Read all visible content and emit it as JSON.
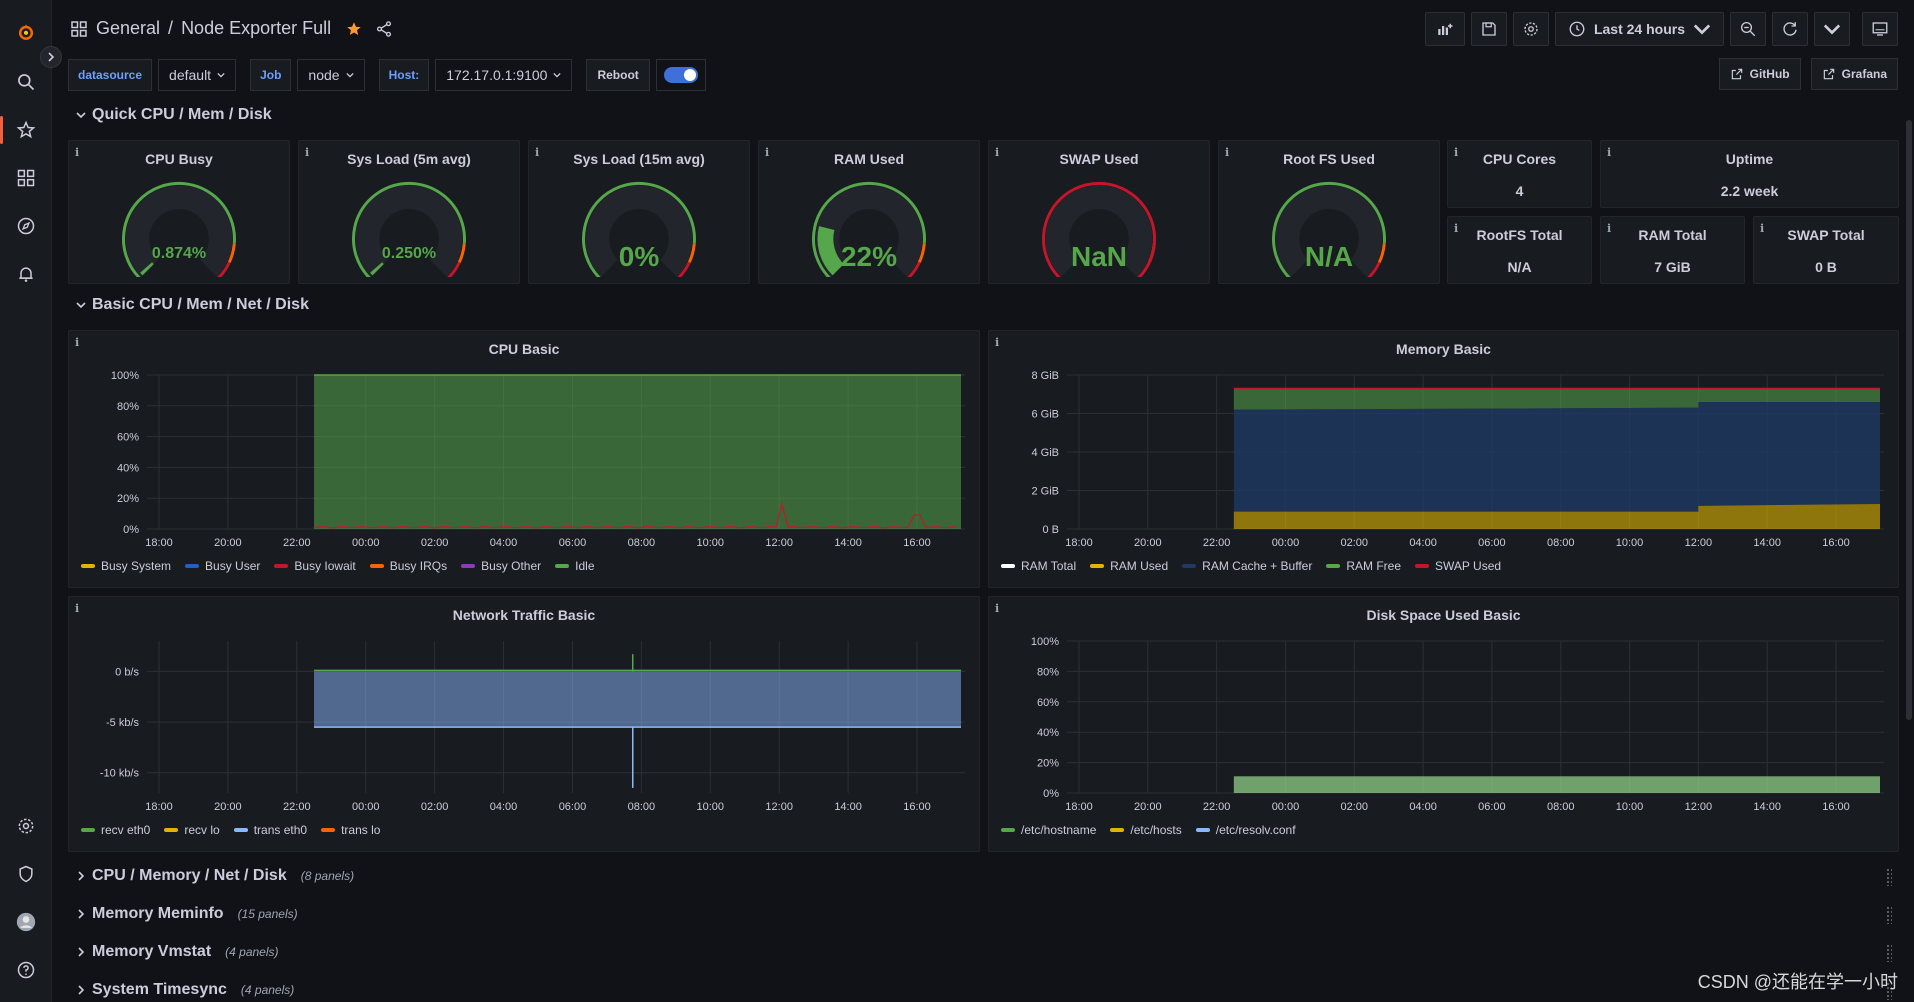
{
  "sidebar": {
    "items": [
      {
        "name": "grafana-logo-icon"
      },
      {
        "name": "search-icon"
      },
      {
        "name": "starred-icon"
      },
      {
        "name": "dashboards-icon"
      },
      {
        "name": "explore-icon"
      },
      {
        "name": "alerting-icon"
      },
      {
        "name": "configuration-icon"
      },
      {
        "name": "server-admin-icon"
      },
      {
        "name": "user-avatar-icon"
      },
      {
        "name": "help-icon"
      }
    ]
  },
  "header": {
    "folder": "General",
    "separator": "/",
    "title": "Node Exporter Full",
    "time_range": "Last 24 hours"
  },
  "variables": [
    {
      "label": "datasource",
      "value": "default"
    },
    {
      "label": "Job",
      "value": "node"
    },
    {
      "label": "Host:",
      "value": "172.17.0.1:9100"
    }
  ],
  "reboot_label": "Reboot",
  "links": [
    "GitHub",
    "Grafana"
  ],
  "rows": {
    "quick": "Quick CPU / Mem / Disk",
    "basic": "Basic CPU / Mem / Net / Disk",
    "collapsed": [
      {
        "title": "CPU / Memory / Net / Disk",
        "count": "(8 panels)"
      },
      {
        "title": "Memory Meminfo",
        "count": "(15 panels)"
      },
      {
        "title": "Memory Vmstat",
        "count": "(4 panels)"
      },
      {
        "title": "System Timesync",
        "count": "(4 panels)"
      }
    ]
  },
  "gauges": [
    {
      "title": "CPU Busy",
      "value": "0.874%",
      "fraction": 0.00874
    },
    {
      "title": "Sys Load (5m avg)",
      "value": "0.250%",
      "fraction": 0.0025
    },
    {
      "title": "Sys Load (15m avg)",
      "value": "0%",
      "fraction": 0
    },
    {
      "title": "RAM Used",
      "value": "22%",
      "fraction": 0.22
    },
    {
      "title": "SWAP Used",
      "value": "NaN",
      "fraction": 0
    },
    {
      "title": "Root FS Used",
      "value": "N/A",
      "fraction": 0
    }
  ],
  "stats": {
    "cpu_cores": {
      "title": "CPU Cores",
      "value": "4"
    },
    "uptime": {
      "title": "Uptime",
      "value": "2.2 week"
    },
    "rootfs_total": {
      "title": "RootFS Total",
      "value": "N/A"
    },
    "ram_total": {
      "title": "RAM Total",
      "value": "7 GiB"
    },
    "swap_total": {
      "title": "SWAP Total",
      "value": "0 B"
    }
  },
  "info_glyph": "i",
  "colors": {
    "green": "#56a64b",
    "yellow": "#e0b400",
    "red": "#c4162a",
    "orange": "#fa6400",
    "blue": "#8ab8ff",
    "purple": "#a16eb8",
    "accent": "#f55f3e"
  },
  "chart_data": [
    {
      "type": "area",
      "title": "CPU Basic",
      "x": [
        "18:00",
        "20:00",
        "22:00",
        "00:00",
        "02:00",
        "04:00",
        "06:00",
        "08:00",
        "10:00",
        "12:00",
        "14:00",
        "16:00"
      ],
      "yticks": [
        "100%",
        "80%",
        "60%",
        "40%",
        "20%",
        "0%"
      ],
      "ylim": [
        0,
        100
      ],
      "data_start": "22:30",
      "series": [
        {
          "name": "Busy System",
          "color": "#e0b400"
        },
        {
          "name": "Busy User",
          "color": "#1f60c4"
        },
        {
          "name": "Busy Iowait",
          "color": "#c4162a"
        },
        {
          "name": "Busy IRQs",
          "color": "#fa6400"
        },
        {
          "name": "Busy Other",
          "color": "#8f3bb8"
        },
        {
          "name": "Idle",
          "color": "#56a64b"
        }
      ]
    },
    {
      "type": "area",
      "title": "Memory Basic",
      "x": [
        "18:00",
        "20:00",
        "22:00",
        "00:00",
        "02:00",
        "04:00",
        "06:00",
        "08:00",
        "10:00",
        "12:00",
        "14:00",
        "16:00"
      ],
      "yticks": [
        "8 GiB",
        "6 GiB",
        "4 GiB",
        "2 GiB",
        "0 B"
      ],
      "ylim": [
        0,
        8
      ],
      "data_start": "22:30",
      "series": [
        {
          "name": "RAM Total",
          "color": "#ffffff"
        },
        {
          "name": "RAM Used",
          "color": "#e0b400"
        },
        {
          "name": "RAM Cache + Buffer",
          "color": "#1f3a63"
        },
        {
          "name": "RAM Free",
          "color": "#56a64b"
        },
        {
          "name": "SWAP Used",
          "color": "#c4162a"
        }
      ]
    },
    {
      "type": "area",
      "title": "Network Traffic Basic",
      "x": [
        "18:00",
        "20:00",
        "22:00",
        "00:00",
        "02:00",
        "04:00",
        "06:00",
        "08:00",
        "10:00",
        "12:00",
        "14:00",
        "16:00"
      ],
      "yticks": [
        "0 b/s",
        "-5 kb/s",
        "-10 kb/s"
      ],
      "ylim": [
        -12,
        3
      ],
      "data_start": "22:30",
      "series": [
        {
          "name": "recv eth0",
          "color": "#56a64b"
        },
        {
          "name": "recv lo",
          "color": "#e0b400"
        },
        {
          "name": "trans eth0",
          "color": "#8ab8ff"
        },
        {
          "name": "trans lo",
          "color": "#fa6400"
        }
      ]
    },
    {
      "type": "area",
      "title": "Disk Space Used Basic",
      "x": [
        "18:00",
        "20:00",
        "22:00",
        "00:00",
        "02:00",
        "04:00",
        "06:00",
        "08:00",
        "10:00",
        "12:00",
        "14:00",
        "16:00"
      ],
      "yticks": [
        "100%",
        "80%",
        "60%",
        "40%",
        "20%",
        "0%"
      ],
      "ylim": [
        0,
        100
      ],
      "data_start": "22:30",
      "series": [
        {
          "name": "/etc/hostname",
          "color": "#56a64b"
        },
        {
          "name": "/etc/hosts",
          "color": "#e0b400"
        },
        {
          "name": "/etc/resolv.conf",
          "color": "#8ab8ff"
        }
      ]
    }
  ],
  "watermark": "CSDN @还能在学一小时"
}
